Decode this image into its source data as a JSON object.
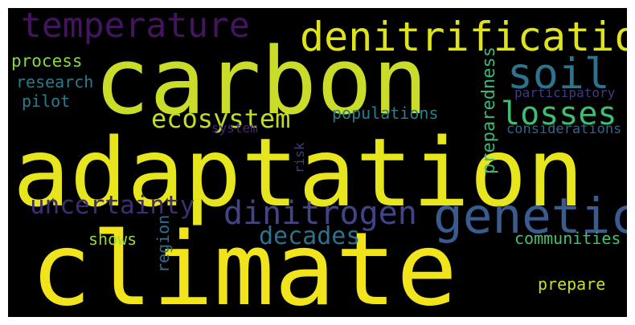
{
  "colors": {
    "background": "#000000"
  },
  "words": [
    {
      "text": "carbon",
      "color": "#c9dc2a"
    },
    {
      "text": "adaptation",
      "color": "#e7e51e"
    },
    {
      "text": "climate",
      "color": "#f2e41c"
    },
    {
      "text": "denitrification",
      "color": "#dfe31c"
    },
    {
      "text": "temperature",
      "color": "#44155f"
    },
    {
      "text": "soil",
      "color": "#2c738e"
    },
    {
      "text": "genetic",
      "color": "#3a5b8d"
    },
    {
      "text": "losses",
      "color": "#40bd72"
    },
    {
      "text": "ecosystem",
      "color": "#c1de24"
    },
    {
      "text": "dinitrogen",
      "color": "#414487"
    },
    {
      "text": "uncertainty",
      "color": "#3f2d72"
    },
    {
      "text": "decades",
      "color": "#2c718e"
    },
    {
      "text": "process",
      "color": "#8bd646"
    },
    {
      "text": "research",
      "color": "#2a7b8e"
    },
    {
      "text": "pilot",
      "color": "#287d8e"
    },
    {
      "text": "populations",
      "color": "#277f8e"
    },
    {
      "text": "preparedness",
      "color": "#3bb77a"
    },
    {
      "text": "participatory",
      "color": "#443983"
    },
    {
      "text": "considerations",
      "color": "#33638d"
    },
    {
      "text": "system",
      "color": "#482777"
    },
    {
      "text": "risk",
      "color": "#3f3f82"
    },
    {
      "text": "communities",
      "color": "#45c06f"
    },
    {
      "text": "shows",
      "color": "#9cd73e"
    },
    {
      "text": "region",
      "color": "#2f6e8e"
    },
    {
      "text": "prepare",
      "color": "#c6e021"
    }
  ]
}
